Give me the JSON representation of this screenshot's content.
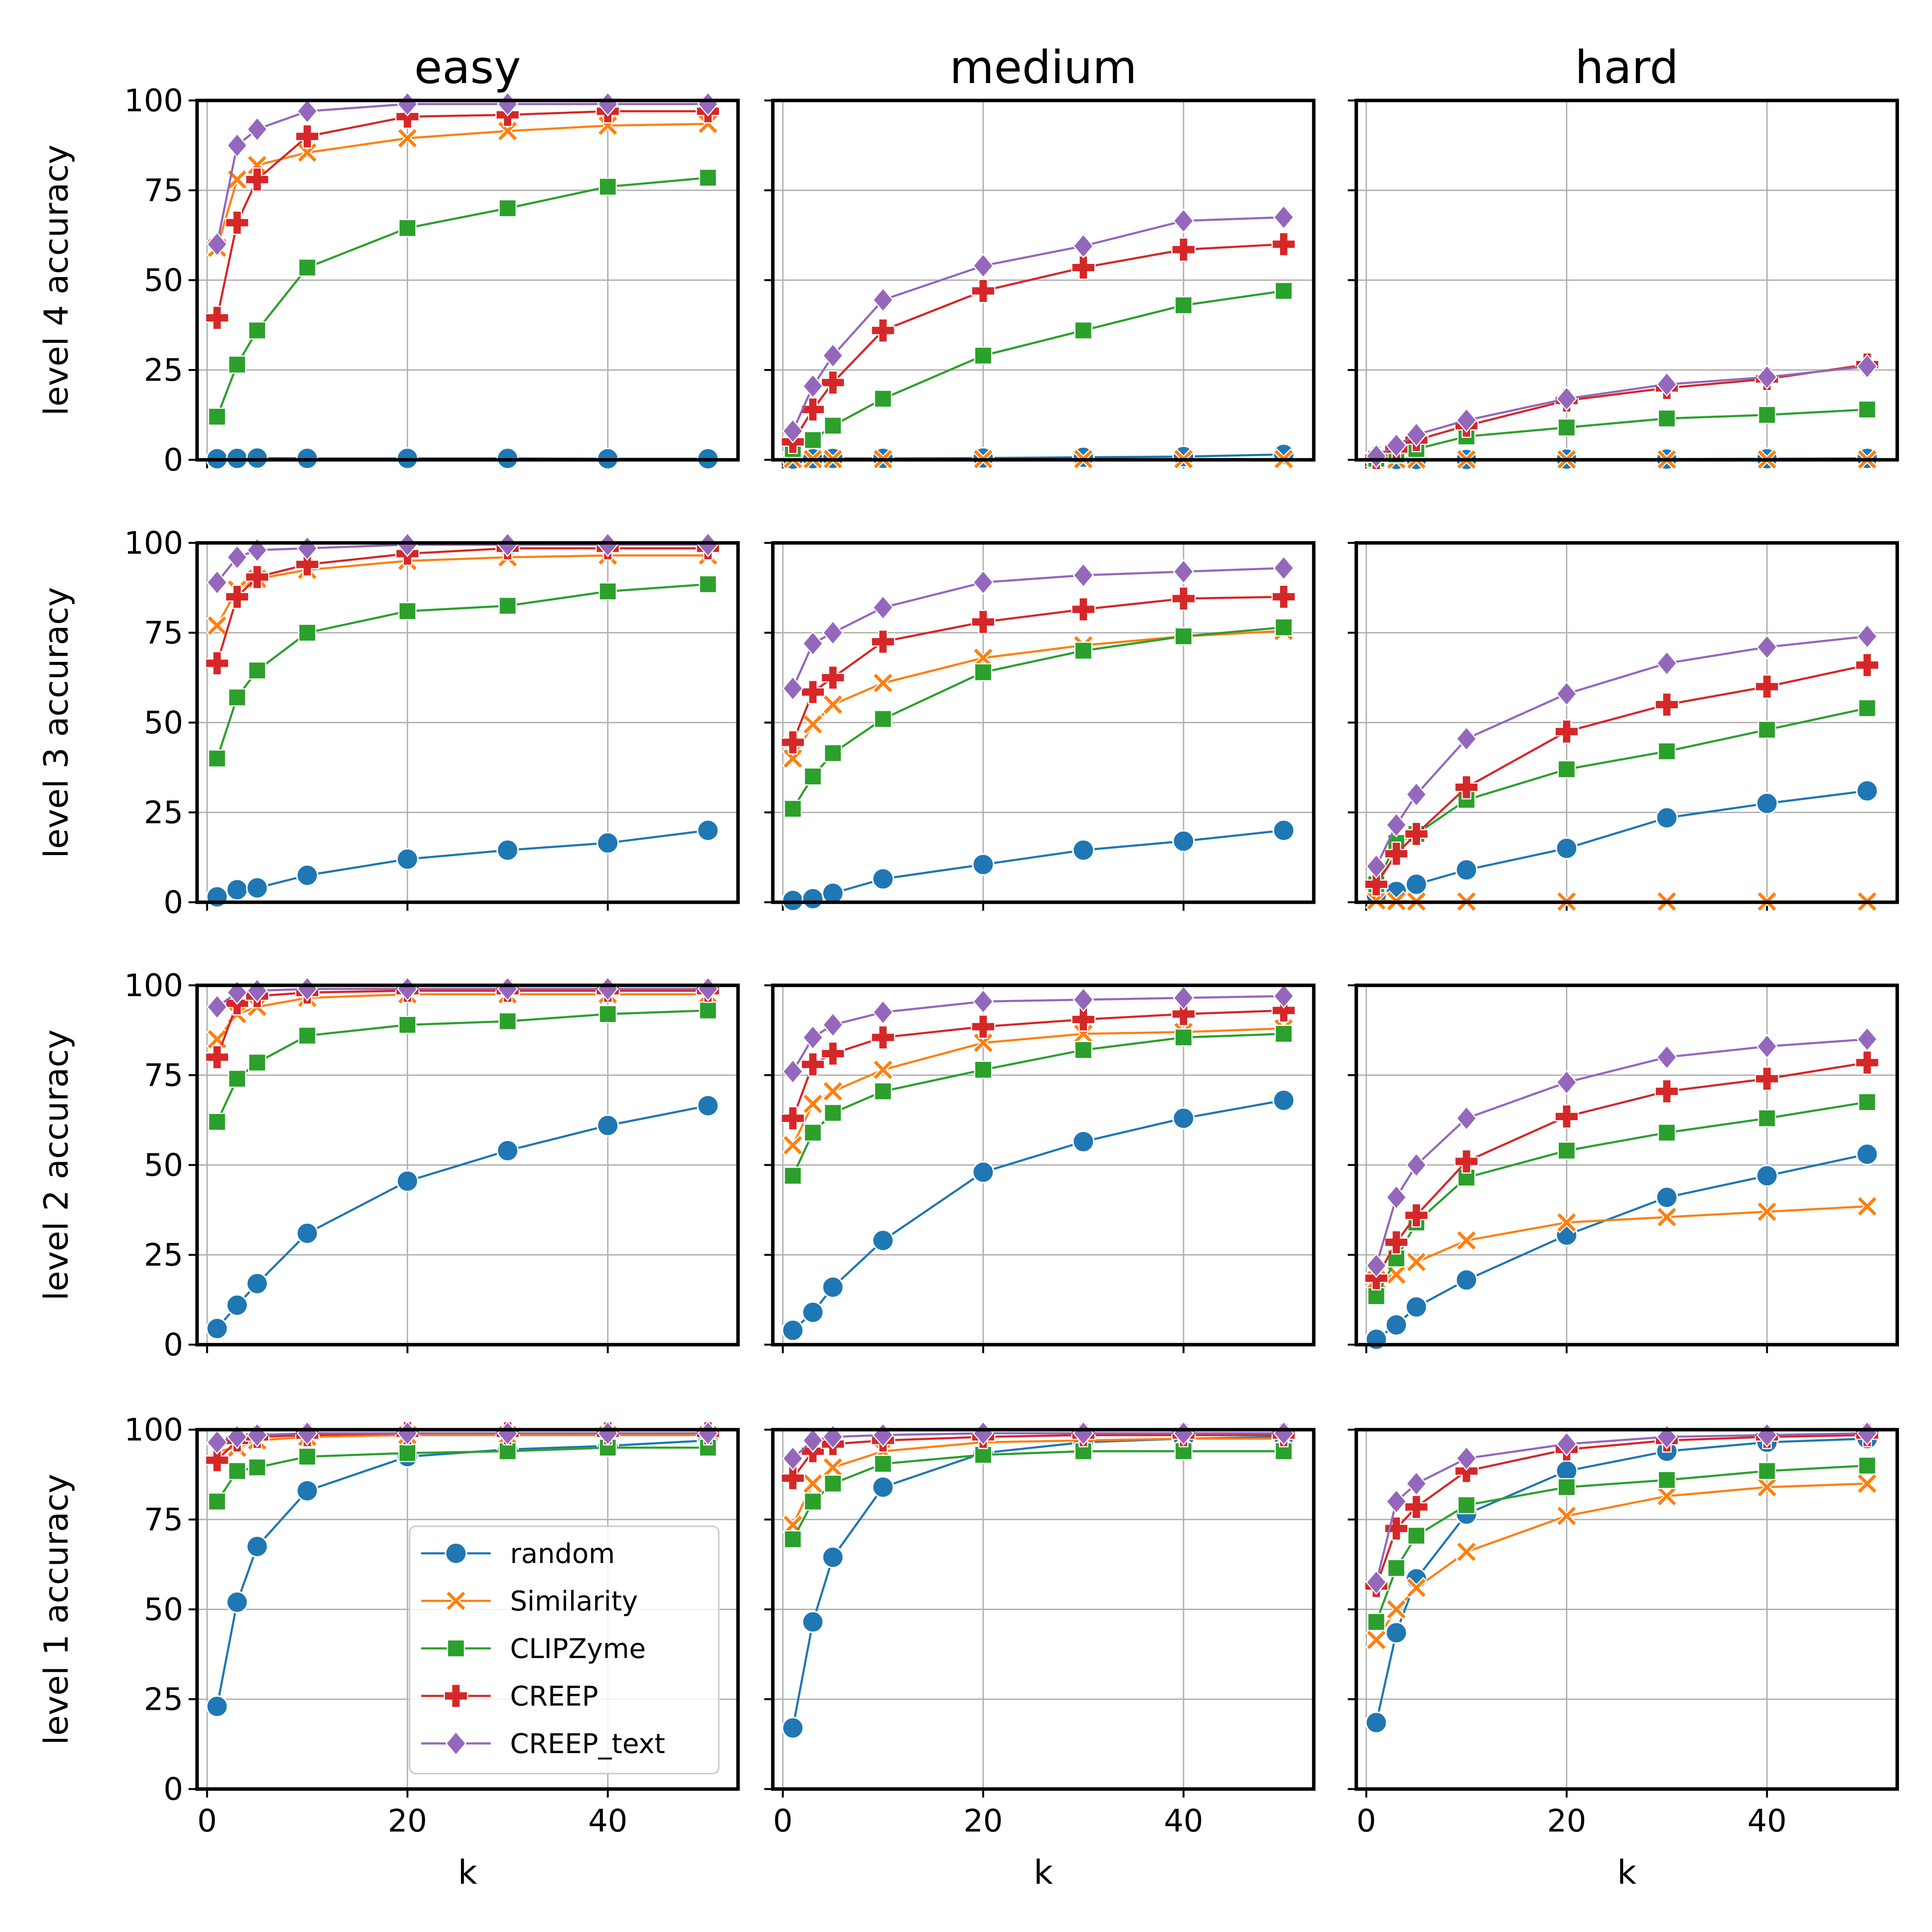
{
  "chart_data": {
    "type": "line",
    "xlabel": "k",
    "x": [
      1,
      3,
      5,
      10,
      20,
      30,
      40,
      50
    ],
    "xticks": [
      0,
      20,
      40
    ],
    "ylim": [
      0,
      100
    ],
    "xlim": [
      -1,
      53
    ],
    "yticks": [
      0,
      25,
      50,
      75,
      100
    ],
    "columns": [
      "easy",
      "medium",
      "hard"
    ],
    "rows": [
      {
        "level": 4,
        "ylabel": "level 4 accuracy"
      },
      {
        "level": 3,
        "ylabel": "level 3 accuracy"
      },
      {
        "level": 2,
        "ylabel": "level 2 accuracy"
      },
      {
        "level": 1,
        "ylabel": "level 1 accuracy"
      }
    ],
    "legend": {
      "placement": "lower-right of bottom-left panel",
      "entries": [
        "random",
        "Similarity",
        "CLIPZyme",
        "CREEP",
        "CREEP_text"
      ]
    },
    "series_styles": [
      {
        "name": "random",
        "color": "#1f77b4",
        "marker": "circle"
      },
      {
        "name": "Similarity",
        "color": "#ff7f0e",
        "marker": "x"
      },
      {
        "name": "CLIPZyme",
        "color": "#2ca02c",
        "marker": "square"
      },
      {
        "name": "CREEP",
        "color": "#d62728",
        "marker": "plus"
      },
      {
        "name": "CREEP_text",
        "color": "#9467bd",
        "marker": "diamond"
      }
    ],
    "panels": [
      {
        "row": 0,
        "col": 0,
        "series": [
          {
            "name": "random",
            "values": [
              0.3,
              0.4,
              0.5,
              0.4,
              0.4,
              0.4,
              0.3,
              0.3
            ]
          },
          {
            "name": "Similarity",
            "values": [
              59,
              78,
              82,
              85.5,
              89.5,
              91.5,
              93,
              93.5
            ]
          },
          {
            "name": "CLIPZyme",
            "values": [
              12,
              26.5,
              36,
              53.5,
              64.5,
              70,
              76,
              78.5
            ]
          },
          {
            "name": "CREEP",
            "values": [
              39.5,
              66,
              78,
              90,
              95.5,
              96,
              97,
              97
            ]
          },
          {
            "name": "CREEP_text",
            "values": [
              60,
              87.5,
              92,
              97,
              99,
              99,
              99,
              99
            ]
          }
        ]
      },
      {
        "row": 0,
        "col": 1,
        "series": [
          {
            "name": "random",
            "values": [
              0.2,
              0.3,
              0.4,
              0.4,
              0.5,
              0.7,
              0.9,
              1.5
            ]
          },
          {
            "name": "Similarity",
            "values": [
              0.2,
              0.2,
              0.2,
              0.2,
              0.2,
              0.2,
              0.2,
              0.2
            ]
          },
          {
            "name": "CLIPZyme",
            "values": [
              3,
              5.5,
              9.5,
              17,
              29,
              36,
              43,
              47
            ]
          },
          {
            "name": "CREEP",
            "values": [
              5,
              14,
              21.5,
              36,
              47,
              53.5,
              58.5,
              60
            ]
          },
          {
            "name": "CREEP_text",
            "values": [
              8,
              20.5,
              29,
              44.5,
              54,
              59.5,
              66.5,
              67.5
            ]
          }
        ]
      },
      {
        "row": 0,
        "col": 2,
        "series": [
          {
            "name": "random",
            "values": [
              0.1,
              0.1,
              0.1,
              0.1,
              0.2,
              0.2,
              0.3,
              0.4
            ]
          },
          {
            "name": "Similarity",
            "values": [
              0.1,
              0.1,
              0.1,
              0.1,
              0.1,
              0.1,
              0.1,
              0.1
            ]
          },
          {
            "name": "CLIPZyme",
            "values": [
              0.3,
              1.5,
              3,
              6.5,
              9,
              11.5,
              12.5,
              14
            ]
          },
          {
            "name": "CREEP",
            "values": [
              0.5,
              3,
              5.5,
              9.5,
              16.5,
              20,
              22.5,
              26.5
            ]
          },
          {
            "name": "CREEP_text",
            "values": [
              1,
              4,
              7,
              11,
              17,
              21,
              23,
              26
            ]
          }
        ]
      },
      {
        "row": 1,
        "col": 0,
        "series": [
          {
            "name": "random",
            "values": [
              1.5,
              3.5,
              4,
              7.5,
              12,
              14.5,
              16.5,
              20
            ]
          },
          {
            "name": "Similarity",
            "values": [
              77,
              87,
              90,
              92.5,
              95,
              96,
              96.5,
              96.5
            ]
          },
          {
            "name": "CLIPZyme",
            "values": [
              40,
              57,
              64.5,
              75,
              81,
              82.5,
              86.5,
              88.5
            ]
          },
          {
            "name": "CREEP",
            "values": [
              66.5,
              85,
              90.5,
              94,
              97,
              98.5,
              98.5,
              98.5
            ]
          },
          {
            "name": "CREEP_text",
            "values": [
              89,
              96,
              98,
              98.5,
              99.5,
              99.5,
              99.5,
              99.5
            ]
          }
        ]
      },
      {
        "row": 1,
        "col": 1,
        "series": [
          {
            "name": "random",
            "values": [
              0.5,
              1,
              2.5,
              6.5,
              10.5,
              14.5,
              17,
              20
            ]
          },
          {
            "name": "Similarity",
            "values": [
              40,
              49.5,
              55,
              61,
              68,
              71.5,
              74,
              75.5
            ]
          },
          {
            "name": "CLIPZyme",
            "values": [
              26,
              35,
              41.5,
              51,
              64,
              70,
              74,
              76.5
            ]
          },
          {
            "name": "CREEP",
            "values": [
              44.5,
              58.5,
              62.5,
              72.5,
              78,
              81.5,
              84.5,
              85
            ]
          },
          {
            "name": "CREEP_text",
            "values": [
              59.5,
              72,
              75,
              82,
              89,
              91,
              92,
              93
            ]
          }
        ]
      },
      {
        "row": 1,
        "col": 2,
        "series": [
          {
            "name": "random",
            "values": [
              2,
              3,
              5,
              9,
              15,
              23.5,
              27.5,
              31
            ]
          },
          {
            "name": "Similarity",
            "values": [
              0.5,
              0.3,
              0.2,
              0.2,
              0.2,
              0.2,
              0.2,
              0.2
            ]
          },
          {
            "name": "CLIPZyme",
            "values": [
              5,
              16.5,
              19,
              28.5,
              37,
              42,
              48,
              54
            ]
          },
          {
            "name": "CREEP",
            "values": [
              5,
              13.5,
              19,
              32,
              47.5,
              55,
              60,
              66
            ]
          },
          {
            "name": "CREEP_text",
            "values": [
              10,
              21.5,
              30,
              45.5,
              58,
              66.5,
              71,
              74
            ]
          }
        ]
      },
      {
        "row": 2,
        "col": 0,
        "series": [
          {
            "name": "random",
            "values": [
              4.5,
              11,
              17,
              31,
              45.5,
              54,
              61,
              66.5
            ]
          },
          {
            "name": "Similarity",
            "values": [
              85,
              92,
              94,
              96.5,
              97.5,
              97.5,
              97.5,
              97.5
            ]
          },
          {
            "name": "CLIPZyme",
            "values": [
              62,
              74,
              78.5,
              86,
              89,
              90,
              92,
              93
            ]
          },
          {
            "name": "CREEP",
            "values": [
              80,
              95,
              97,
              98,
              98.5,
              98.5,
              98.5,
              98.5
            ]
          },
          {
            "name": "CREEP_text",
            "values": [
              94,
              98,
              98.5,
              99,
              99,
              99,
              99,
              99
            ]
          }
        ]
      },
      {
        "row": 2,
        "col": 1,
        "series": [
          {
            "name": "random",
            "values": [
              4,
              9,
              16,
              29,
              48,
              56.5,
              63,
              68
            ]
          },
          {
            "name": "Similarity",
            "values": [
              55.5,
              67,
              70.5,
              76.5,
              84,
              86.5,
              87,
              88
            ]
          },
          {
            "name": "CLIPZyme",
            "values": [
              47,
              59,
              64.5,
              70.5,
              76.5,
              82,
              85.5,
              86.5
            ]
          },
          {
            "name": "CREEP",
            "values": [
              63,
              78,
              81,
              85.5,
              88.5,
              90.5,
              92,
              93
            ]
          },
          {
            "name": "CREEP_text",
            "values": [
              76,
              85.5,
              89,
              92.5,
              95.5,
              96,
              96.5,
              97
            ]
          }
        ]
      },
      {
        "row": 2,
        "col": 2,
        "series": [
          {
            "name": "random",
            "values": [
              1.5,
              5.5,
              10.5,
              18,
              30.5,
              41,
              47,
              53
            ]
          },
          {
            "name": "Similarity",
            "values": [
              18,
              19.5,
              23,
              29,
              34,
              35.5,
              37,
              38.5
            ]
          },
          {
            "name": "CLIPZyme",
            "values": [
              13.5,
              24,
              34,
              46.5,
              54,
              59,
              63,
              67.5
            ]
          },
          {
            "name": "CREEP",
            "values": [
              18.5,
              28.5,
              36,
              51,
              63.5,
              70.5,
              74,
              78.5
            ]
          },
          {
            "name": "CREEP_text",
            "values": [
              22,
              41,
              50,
              63,
              73,
              80,
              83,
              85
            ]
          }
        ]
      },
      {
        "row": 3,
        "col": 0,
        "series": [
          {
            "name": "random",
            "values": [
              23,
              52,
              67.5,
              83,
              92.5,
              94.5,
              95.5,
              97
            ]
          },
          {
            "name": "Similarity",
            "values": [
              94,
              95,
              97,
              98,
              98.5,
              98.5,
              98.5,
              98.5
            ]
          },
          {
            "name": "CLIPZyme",
            "values": [
              80,
              88.5,
              89.5,
              92.5,
              93.5,
              94,
              95,
              95
            ]
          },
          {
            "name": "CREEP",
            "values": [
              91.5,
              97,
              98,
              98.5,
              99,
              99,
              99,
              99
            ]
          },
          {
            "name": "CREEP_text",
            "values": [
              96.5,
              98,
              98.5,
              99,
              99,
              99,
              99,
              99
            ]
          }
        ]
      },
      {
        "row": 3,
        "col": 1,
        "series": [
          {
            "name": "random",
            "values": [
              17,
              46.5,
              64.5,
              84,
              93.5,
              96.5,
              97.5,
              98
            ]
          },
          {
            "name": "Similarity",
            "values": [
              73.5,
              85,
              89.5,
              94,
              96.5,
              97,
              97.5,
              97.5
            ]
          },
          {
            "name": "CLIPZyme",
            "values": [
              69.5,
              80,
              85,
              90.5,
              93,
              94,
              94,
              94
            ]
          },
          {
            "name": "CREEP",
            "values": [
              86.5,
              94,
              96,
              97,
              98,
              98.5,
              98.5,
              98.5
            ]
          },
          {
            "name": "CREEP_text",
            "values": [
              92,
              97,
              98,
              98.5,
              99,
              99,
              99,
              99
            ]
          }
        ]
      },
      {
        "row": 3,
        "col": 2,
        "series": [
          {
            "name": "random",
            "values": [
              18.5,
              43.5,
              58.5,
              76.5,
              88.5,
              94,
              96.5,
              97.5
            ]
          },
          {
            "name": "Similarity",
            "values": [
              41.5,
              50,
              56,
              66,
              76,
              81.5,
              84,
              85
            ]
          },
          {
            "name": "CLIPZyme",
            "values": [
              46.5,
              61.5,
              70.5,
              79,
              84,
              86,
              88.5,
              90
            ]
          },
          {
            "name": "CREEP",
            "values": [
              56.5,
              72.5,
              78.5,
              88.5,
              94.5,
              97,
              98,
              98.5
            ]
          },
          {
            "name": "CREEP_text",
            "values": [
              57.5,
              80,
              85,
              92,
              96,
              98,
              98.5,
              99
            ]
          }
        ]
      }
    ]
  }
}
